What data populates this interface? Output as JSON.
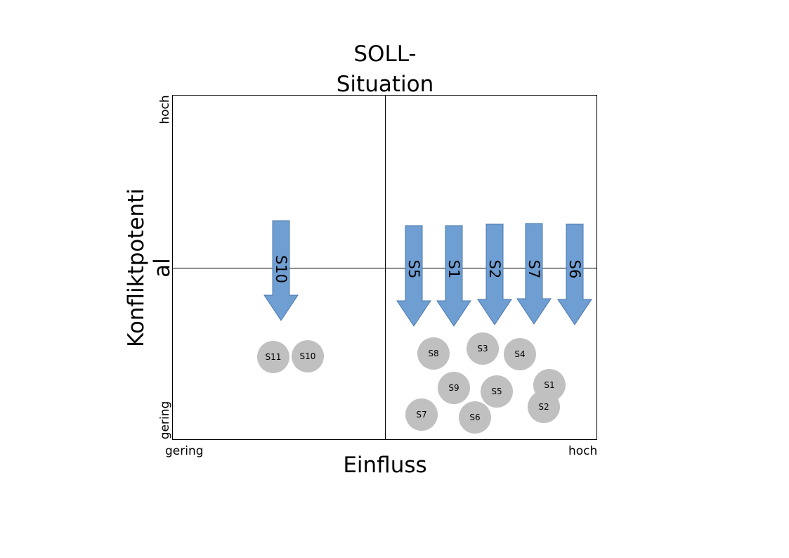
{
  "title": {
    "line1": "SOLL-",
    "line2": "Situation"
  },
  "x_axis": {
    "label": "Einfluss",
    "low": "gering",
    "high": "hoch"
  },
  "y_axis": {
    "label_line1": "Konfliktpotenti",
    "label_line2": "al",
    "low": "gering",
    "high": "hoch"
  },
  "colors": {
    "arrow_fill": "#6f9ed2",
    "arrow_stroke": "#4a78ad",
    "circle_fill": "#c0c0c0",
    "axis": "#000000"
  },
  "arrows": [
    {
      "label": "S10"
    },
    {
      "label": "S5"
    },
    {
      "label": "S1"
    },
    {
      "label": "S2"
    },
    {
      "label": "S7"
    },
    {
      "label": "S6"
    }
  ],
  "stakeholders": [
    {
      "label": "S11"
    },
    {
      "label": "S10"
    },
    {
      "label": "S8"
    },
    {
      "label": "S3"
    },
    {
      "label": "S4"
    },
    {
      "label": "S9"
    },
    {
      "label": "S5"
    },
    {
      "label": "S1"
    },
    {
      "label": "S2"
    },
    {
      "label": "S7"
    },
    {
      "label": "S6"
    }
  ]
}
